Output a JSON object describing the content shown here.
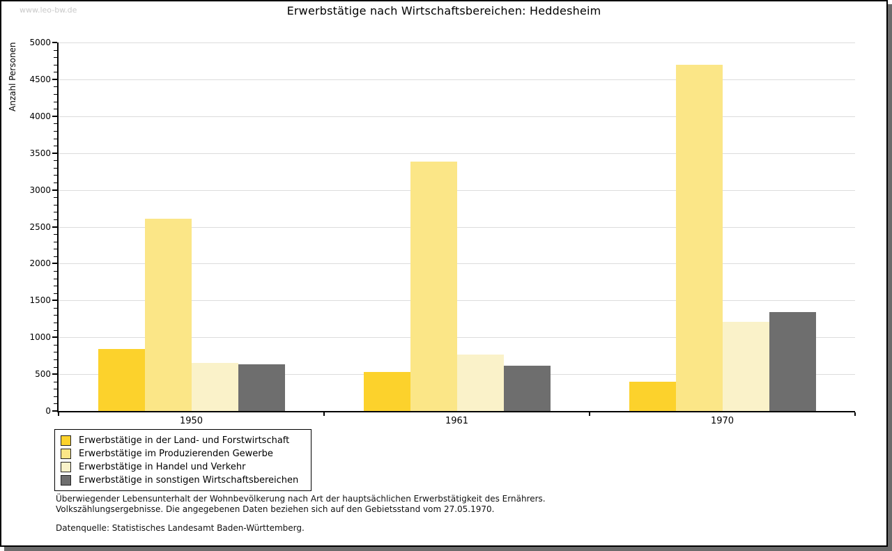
{
  "watermark": "www.leo-bw.de",
  "chart_data": {
    "type": "bar",
    "title": "Erwerbstätige nach Wirtschaftsbereichen: Heddesheim",
    "ylabel": "Anzahl Personen",
    "xlabel": "",
    "ylim": [
      0,
      5000
    ],
    "yticks": [
      0,
      500,
      1000,
      1500,
      2000,
      2500,
      3000,
      3500,
      4000,
      4500,
      5000
    ],
    "minor_tick_step": 100,
    "grid": true,
    "legend_position": "bottom-left",
    "categories": [
      "1950",
      "1961",
      "1970"
    ],
    "series": [
      {
        "name": "Erwerbstätige in der Land- und Forstwirtschaft",
        "color": "#FCD22C",
        "values": [
          840,
          530,
          400
        ]
      },
      {
        "name": "Erwerbstätige im Produzierenden Gewerbe",
        "color": "#FBE687",
        "values": [
          2610,
          3380,
          4700
        ]
      },
      {
        "name": "Erwerbstätige in Handel und Verkehr",
        "color": "#FAF2C9",
        "values": [
          650,
          770,
          1210
        ]
      },
      {
        "name": "Erwerbstätige in sonstigen Wirtschaftsbereichen",
        "color": "#6E6E6E",
        "values": [
          630,
          610,
          1340
        ]
      }
    ]
  },
  "footnotes": {
    "line1": "Überwiegender Lebensunterhalt der Wohnbevölkerung nach Art der hauptsächlichen Erwerbstätigkeit des Ernährers.",
    "line2": "Volkszählungsergebnisse. Die angegebenen Daten beziehen sich auf den Gebietsstand vom 27.05.1970.",
    "source": "Datenquelle: Statistisches Landesamt Baden-Württemberg."
  },
  "colors": {
    "axis": "#000000",
    "gridline": "#dcdcdc",
    "watermark": "#c9c9c9",
    "shadow": "#6b6b6b"
  }
}
